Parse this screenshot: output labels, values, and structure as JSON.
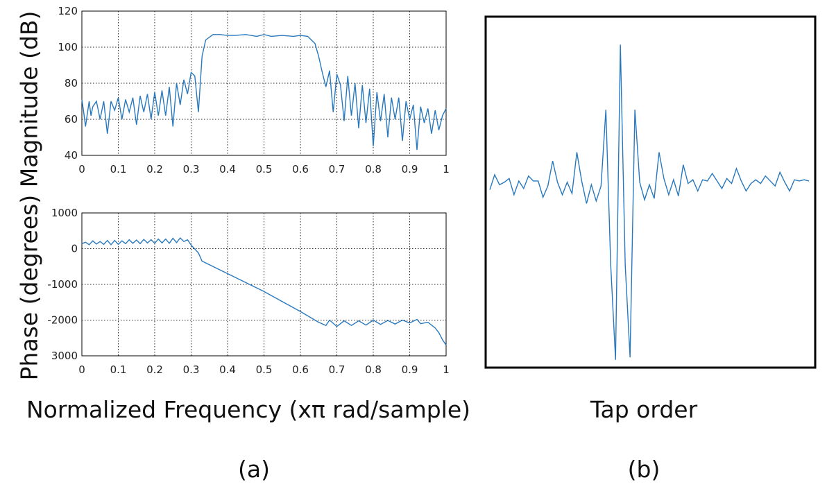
{
  "figure": {
    "label_a": "(a)",
    "label_b": "(b)",
    "ylabel_shared": "Phase (degrees) Magnitude (dB)"
  },
  "chart_data": [
    {
      "type": "line",
      "ylabel": "Magnitude (dB)",
      "xlim": [
        0,
        1
      ],
      "ylim": [
        40,
        120
      ],
      "xticks": [
        "0",
        "0.1",
        "0.2",
        "0.3",
        "0.4",
        "0.5",
        "0.6",
        "0.7",
        "0.8",
        "0.9",
        "1"
      ],
      "yticks": [
        "40",
        "60",
        "80",
        "100",
        "120"
      ],
      "grid": true,
      "color": "#2878bd",
      "series": [
        {
          "x": [
            0,
            0.005,
            0.01,
            0.02,
            0.025,
            0.03,
            0.04,
            0.05,
            0.06,
            0.07,
            0.08,
            0.09,
            0.1,
            0.11,
            0.12,
            0.13,
            0.14,
            0.15,
            0.16,
            0.17,
            0.18,
            0.19,
            0.2,
            0.21,
            0.22,
            0.23,
            0.24,
            0.25,
            0.26,
            0.27,
            0.28,
            0.29,
            0.3,
            0.31,
            0.32,
            0.33,
            0.34,
            0.36,
            0.38,
            0.4,
            0.42,
            0.45,
            0.48,
            0.5,
            0.52,
            0.55,
            0.58,
            0.6,
            0.62,
            0.64,
            0.65,
            0.66,
            0.67,
            0.68,
            0.69,
            0.7,
            0.71,
            0.72,
            0.73,
            0.74,
            0.75,
            0.76,
            0.77,
            0.78,
            0.79,
            0.8,
            0.81,
            0.82,
            0.83,
            0.84,
            0.85,
            0.86,
            0.87,
            0.88,
            0.89,
            0.9,
            0.91,
            0.92,
            0.93,
            0.94,
            0.95,
            0.96,
            0.97,
            0.98,
            0.99,
            1
          ],
          "y": [
            71,
            64,
            56,
            70,
            62,
            67,
            70,
            60,
            70,
            52,
            70,
            65,
            72,
            60,
            71,
            64,
            72,
            57,
            73,
            64,
            74,
            60,
            75,
            62,
            76,
            62,
            78,
            56,
            80,
            68,
            82,
            74,
            86,
            84,
            64,
            95,
            104,
            107,
            107,
            106.5,
            106.5,
            107,
            106,
            107,
            106,
            106.5,
            106,
            106.5,
            106,
            102,
            95,
            86,
            78,
            87,
            64,
            85,
            79,
            59,
            84,
            62,
            80,
            55,
            79,
            58,
            77,
            45,
            75,
            59,
            74,
            50,
            72,
            60,
            72,
            48,
            70,
            60,
            68,
            43,
            67,
            58,
            66,
            52,
            65,
            54,
            62,
            66
          ]
        }
      ]
    },
    {
      "type": "line",
      "ylabel": "Phase (degrees)",
      "xlabel": "Normalized Frequency (xπ rad/sample)",
      "xlim": [
        0,
        1
      ],
      "ylim": [
        -3000,
        1000
      ],
      "xticks": [
        "0",
        "0.1",
        "0.2",
        "0.3",
        "0.4",
        "0.5",
        "0.6",
        "0.7",
        "0.8",
        "0.9",
        "1"
      ],
      "yticks": [
        "1000",
        "0",
        "-1000",
        "-2000",
        "3000"
      ],
      "grid": true,
      "color": "#2878bd",
      "series": [
        {
          "x": [
            0,
            0.01,
            0.02,
            0.03,
            0.04,
            0.05,
            0.06,
            0.07,
            0.08,
            0.09,
            0.1,
            0.11,
            0.12,
            0.13,
            0.14,
            0.15,
            0.16,
            0.17,
            0.18,
            0.19,
            0.2,
            0.21,
            0.22,
            0.23,
            0.24,
            0.25,
            0.26,
            0.27,
            0.28,
            0.29,
            0.3,
            0.32,
            0.33,
            0.35,
            0.4,
            0.45,
            0.5,
            0.55,
            0.6,
            0.65,
            0.67,
            0.68,
            0.7,
            0.72,
            0.74,
            0.76,
            0.78,
            0.8,
            0.82,
            0.84,
            0.86,
            0.88,
            0.9,
            0.92,
            0.93,
            0.95,
            0.97,
            0.98,
            0.99,
            1
          ],
          "y": [
            140,
            180,
            110,
            220,
            130,
            200,
            120,
            230,
            110,
            230,
            120,
            220,
            140,
            250,
            150,
            240,
            140,
            260,
            160,
            250,
            150,
            270,
            160,
            270,
            150,
            290,
            170,
            300,
            200,
            250,
            100,
            -120,
            -350,
            -450,
            -700,
            -950,
            -1200,
            -1480,
            -1760,
            -2060,
            -2150,
            -2000,
            -2180,
            -2020,
            -2150,
            -2020,
            -2140,
            -2000,
            -2120,
            -2010,
            -2110,
            -2000,
            -2080,
            -1980,
            -2100,
            -2060,
            -2220,
            -2350,
            -2550,
            -2700
          ]
        }
      ]
    },
    {
      "type": "line",
      "xlabel": "Tap order",
      "color": "#2878bd",
      "series": [
        {
          "x": [
            0,
            1,
            2,
            3,
            4,
            5,
            6,
            7,
            8,
            9,
            10,
            11,
            12,
            13,
            14,
            15,
            16,
            17,
            18,
            19,
            20,
            21,
            22,
            23,
            24,
            25,
            26,
            27,
            28,
            29,
            30,
            31,
            32,
            33,
            34,
            35,
            36,
            37,
            38,
            39,
            40,
            41,
            42,
            43,
            44,
            45,
            46,
            47,
            48,
            49,
            50,
            51,
            52,
            53,
            54,
            55,
            56,
            57,
            58,
            59,
            60,
            61,
            62,
            63,
            64,
            65,
            66
          ],
          "y": [
            0,
            0.06,
            0.02,
            0.03,
            0.045,
            -0.02,
            0.035,
            0.005,
            0.055,
            0.035,
            0.035,
            -0.03,
            0.015,
            0.115,
            0.03,
            -0.02,
            0.03,
            -0.015,
            0.15,
            0.035,
            -0.055,
            0.02,
            -0.045,
            0.015,
            0.32,
            -0.3,
            -0.68,
            0.58,
            -0.3,
            -0.67,
            0.32,
            0.03,
            -0.04,
            0.02,
            -0.035,
            0.15,
            0.045,
            -0.02,
            0.04,
            -0.025,
            0.1,
            0.025,
            0.04,
            -0.005,
            0.04,
            0.035,
            0.065,
            0.035,
            0.005,
            0.045,
            0.025,
            0.085,
            0.035,
            -0.005,
            0.025,
            0.04,
            0.025,
            0.055,
            0.035,
            0.015,
            0.07,
            0.03,
            -0.005,
            0.04,
            0.035,
            0.04,
            0.035
          ]
        }
      ]
    }
  ]
}
